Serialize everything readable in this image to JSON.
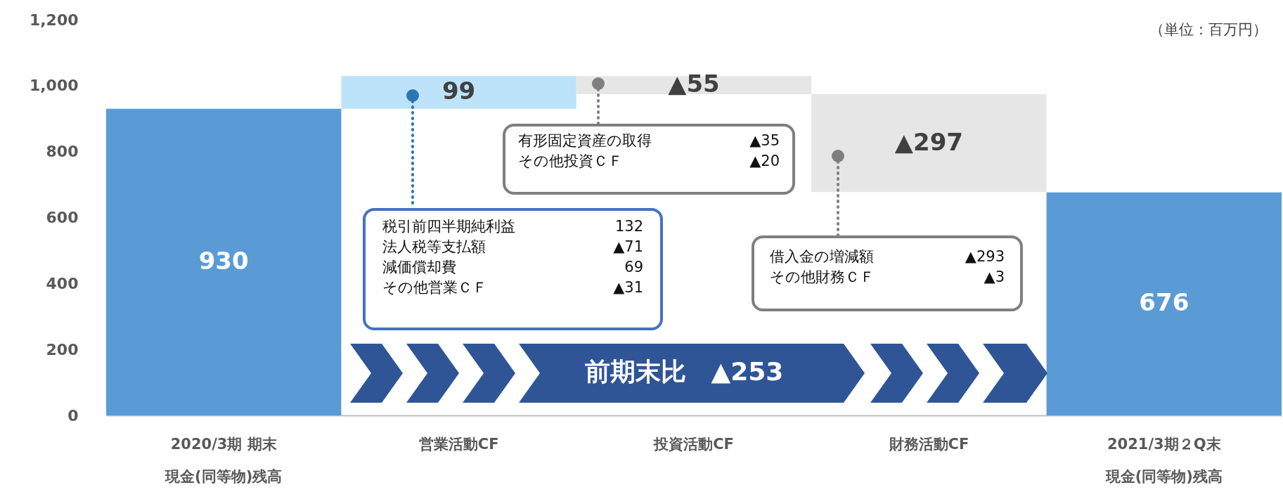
{
  "chart_data": {
    "type": "bar",
    "categories": [
      "2020/3期 期末現金(同等物)残高",
      "営業活動CF",
      "投資活動CF",
      "財務活動CF",
      "2021/3期２Q末現金(同等物)残高"
    ],
    "values": [
      930,
      99,
      -55,
      -297,
      676
    ],
    "base": [
      0,
      930,
      1029,
      974,
      0
    ],
    "colors": [
      "#5b9bd5",
      "#bde3fa",
      "#e6e6e6",
      "#e6e6e6",
      "#5b9bd5"
    ],
    "value_labels": [
      "930",
      "99",
      "▲55",
      "▲297",
      "676"
    ],
    "ylim": [
      0,
      1200
    ],
    "yticks": [
      0,
      200,
      400,
      600,
      800,
      {
        "value": 1000,
        "label": "1,000"
      },
      {
        "value": 1200,
        "label": "1,200"
      }
    ],
    "grid": false,
    "annotations": [
      "（単位：百万円）",
      "税引前四半期純利益\t132\n法人税等支払額\t▲71\n減価償却費\t69\nその他営業ＣＦ\t▲31",
      "有形固定資産の取得\t▲35\nその他投資ＣＦ\t▲20",
      "借入金の増減額\t▲293\nその他財務ＣＦ\t▲3",
      "前期末比　▲253"
    ]
  }
}
